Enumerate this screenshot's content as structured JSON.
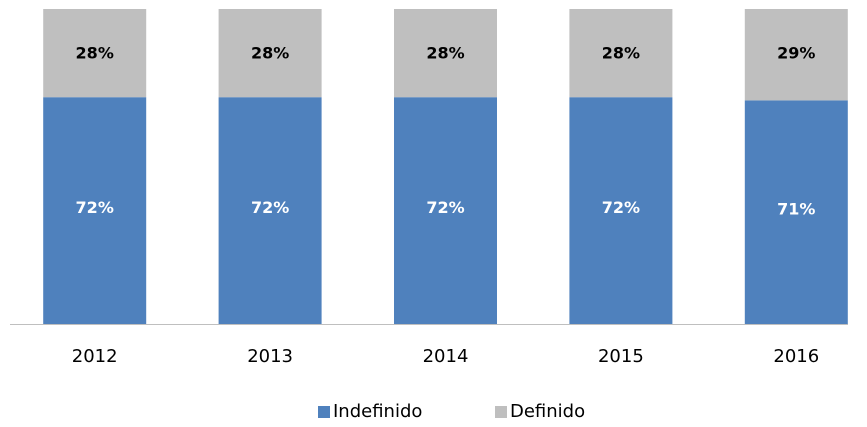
{
  "chart_data": {
    "type": "stacked_bar",
    "categories": [
      "2012",
      "2013",
      "2014",
      "2015",
      "2016"
    ],
    "series": [
      {
        "name": "Indefinido",
        "color": "#4f81bd",
        "values": [
          72,
          72,
          72,
          72,
          71
        ],
        "value_labels": [
          "72%",
          "72%",
          "72%",
          "72%",
          "71%"
        ]
      },
      {
        "name": "Definido",
        "color": "#bfbfbf",
        "values": [
          28,
          28,
          28,
          28,
          29
        ],
        "value_labels": [
          "28%",
          "28%",
          "28%",
          "28%",
          "29%"
        ]
      }
    ],
    "ylim": [
      0,
      100
    ]
  }
}
